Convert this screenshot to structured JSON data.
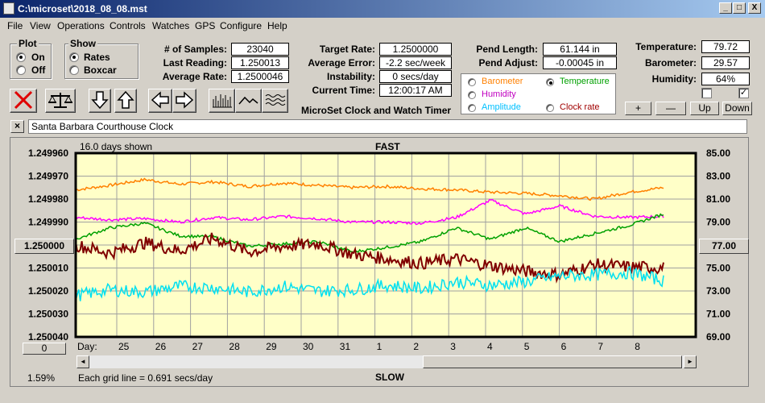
{
  "window": {
    "title": "C:\\microset\\2018_08_08.mst",
    "min": "_",
    "max": "□",
    "close": "X"
  },
  "menu": [
    "File",
    "View",
    "Operations",
    "Controls",
    "Watches",
    "GPS",
    "Configure",
    "Help"
  ],
  "plot_group": {
    "title": "Plot",
    "options": [
      "On",
      "Off"
    ],
    "selected": 0
  },
  "show_group": {
    "title": "Show",
    "options": [
      "Rates",
      "Boxcar"
    ],
    "selected": 0
  },
  "stats": {
    "samples_label": "# of Samples:",
    "samples": "23040",
    "last_label": "Last Reading:",
    "last": "1.250013",
    "avg_label": "Average Rate:",
    "avg": "1.2500046"
  },
  "rates": {
    "target_label": "Target Rate:",
    "target": "1.2500000",
    "error_label": "Average Error:",
    "error": "-2.2 sec/week",
    "instab_label": "Instability:",
    "instab": "0 secs/day",
    "time_label": "Current Time:",
    "time": "12:00:17 AM"
  },
  "app_name": "MicroSet Clock and Watch Timer",
  "pendulum": {
    "length_label": "Pend Length:",
    "length": "61.144 in",
    "adjust_label": "Pend Adjust:",
    "adjust": "-0.00045 in"
  },
  "second_plot": {
    "options": [
      {
        "label": "Barometer",
        "color": "#ff8000"
      },
      {
        "label": "Temperature",
        "color": "#00a000"
      },
      {
        "label": "Humidity",
        "color": "#c000c0"
      },
      {
        "label": "Amplitude",
        "color": "#00c0ff"
      },
      {
        "label": "Clock rate",
        "color": "#a00000"
      }
    ],
    "selected": 1
  },
  "env": {
    "temp_label": "Temperature:",
    "temp": "79.72",
    "baro_label": "Barometer:",
    "baro": "29.57",
    "hum_label": "Humidity:",
    "hum": "64%"
  },
  "env_checks": [
    false,
    true
  ],
  "env_buttons": [
    "+",
    "—",
    "Up",
    "Down"
  ],
  "clock_name": "Santa Barbara Courthouse Clock",
  "clear_name": "×",
  "chart": {
    "days_shown": "16.0 days shown",
    "top_label": "FAST",
    "bottom_label": "SLOW",
    "grid_note": "Each grid line = 0.691 secs/day",
    "left_axis_button": "1.250000",
    "right_axis_button": "77.00",
    "zero_button": "0",
    "percent": "1.59%",
    "day_label": "Day:",
    "scroll_left": "◄",
    "scroll_right": "►"
  },
  "chart_data": {
    "type": "line",
    "title": "",
    "x_ticks": [
      "25",
      "26",
      "27",
      "28",
      "29",
      "30",
      "31",
      "1",
      "2",
      "3",
      "4",
      "5",
      "6",
      "7",
      "8"
    ],
    "y_left_ticks": [
      "1.249960",
      "1.249970",
      "1.249980",
      "1.249990",
      "1.250000",
      "1.250010",
      "1.250020",
      "1.250030",
      "1.250040"
    ],
    "y_left_range": [
      1.24996,
      1.25004
    ],
    "y_right_ticks": [
      "85.00",
      "83.00",
      "81.00",
      "79.00",
      "77.00",
      "75.00",
      "73.00",
      "71.00",
      "69.00"
    ],
    "y_right_range": [
      69,
      85
    ],
    "grid": true,
    "background": "#ffffc8",
    "series": [
      {
        "color": "#ff8000",
        "values": [
          81.8,
          82.2,
          82.7,
          82.3,
          82.5,
          82.1,
          82.4,
          82.2,
          82.0,
          82.1,
          81.9,
          81.8,
          81.6,
          81.5,
          81.3,
          81.0,
          81.6,
          82.0
        ]
      },
      {
        "color": "#ff00ff",
        "values": [
          79.4,
          79.2,
          79.3,
          79.0,
          79.4,
          79.2,
          79.5,
          79.3,
          79.0,
          79.0,
          78.9,
          79.4,
          80.9,
          79.7,
          80.4,
          79.5,
          79.4,
          79.5
        ]
      },
      {
        "color": "#00a000",
        "values": [
          77.5,
          78.5,
          78.9,
          77.8,
          77.7,
          76.9,
          77.1,
          77.3,
          76.4,
          76.8,
          77.3,
          78.5,
          77.5,
          78.5,
          77.3,
          78.0,
          78.7,
          79.7
        ]
      },
      {
        "color": "#800000",
        "values": [
          77.0,
          76.3,
          77.2,
          76.5,
          77.6,
          76.4,
          76.9,
          77.1,
          76.2,
          75.8,
          75.4,
          75.8,
          75.2,
          74.7,
          74.4,
          75.3,
          75.1,
          75.0
        ]
      },
      {
        "color": "#00e0f0",
        "values": [
          72.6,
          73.1,
          72.9,
          73.4,
          73.3,
          72.9,
          73.4,
          73.0,
          73.1,
          73.5,
          73.2,
          73.8,
          73.5,
          73.8,
          74.3,
          74.4,
          74.6,
          73.9
        ]
      }
    ]
  }
}
